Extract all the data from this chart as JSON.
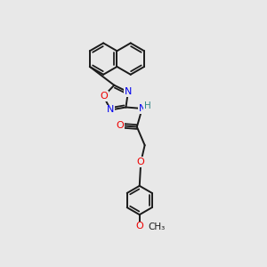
{
  "bg_color": "#e8e8e8",
  "bond_color": "#1a1a1a",
  "bond_width": 1.4,
  "atom_colors": {
    "N": "#0000ee",
    "O": "#ee0000",
    "H": "#338888",
    "C": "#1a1a1a"
  }
}
